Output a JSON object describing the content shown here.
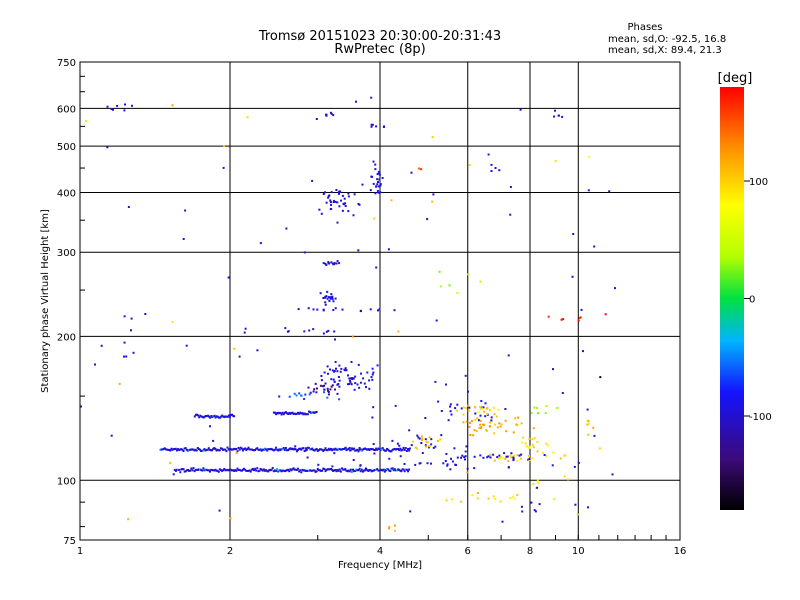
{
  "chart_data": {
    "type": "scatter",
    "title": "Tromsø 20151023 20:30:00-20:31:43",
    "subtitle": "RwPretec (8p)",
    "xlabel": "Frequency [MHz]",
    "ylabel": "Stationary phase Virtual Height [km]",
    "x_scale": "log",
    "y_scale": "log",
    "xlim": [
      1,
      16
    ],
    "ylim": [
      75,
      750
    ],
    "x_ticks": [
      1,
      2,
      4,
      6,
      8,
      10,
      16
    ],
    "x_tick_labels": [
      "1",
      "2",
      "4",
      "6",
      "8",
      "10",
      "16"
    ],
    "y_ticks": [
      75,
      100,
      200,
      300,
      400,
      500,
      600,
      750
    ],
    "y_tick_labels": [
      "75",
      "100",
      "200",
      "300",
      "400",
      "500",
      "600",
      "750"
    ],
    "grid": true,
    "phases": {
      "heading": "Phases",
      "line_o": "mean, sd,O: -92.5, 16.8",
      "line_x": "mean, sd,X: 89.4, 21.3"
    },
    "colorbar": {
      "label": "[deg]",
      "range": [
        -180,
        180
      ],
      "ticks": [
        100,
        0,
        -100
      ],
      "tick_labels": [
        "100",
        "0",
        "-100"
      ]
    },
    "traces": [
      {
        "name": "",
        "x_start": 1.55,
        "x_end": 4.6,
        "y": 105,
        "phase": -95
      },
      {
        "name": "",
        "x_start": 1.45,
        "x_end": 4.6,
        "y": 116,
        "phase": -95
      },
      {
        "name": "",
        "x_start": 1.7,
        "x_end": 2.05,
        "y": 136,
        "phase": -95
      },
      {
        "name": "",
        "x_start": 2.45,
        "x_end": 3.0,
        "y": 138,
        "phase": -95
      }
    ],
    "clusters": [
      {
        "x": 4.5,
        "y": 118,
        "phase": -95,
        "dx": 0.8,
        "dy": 0.12,
        "n": 35
      },
      {
        "x": 5.2,
        "y": 108,
        "phase": -95,
        "dx": 1.2,
        "dy": 0.05,
        "n": 30
      },
      {
        "x": 5.8,
        "y": 140,
        "phase": -95,
        "dx": 0.6,
        "dy": 0.1,
        "n": 25
      },
      {
        "x": 6.7,
        "y": 130,
        "phase": 115,
        "dx": 0.3,
        "dy": 0.08,
        "n": 40
      },
      {
        "x": 6.2,
        "y": 140,
        "phase": 100,
        "dx": 0.25,
        "dy": 0.06,
        "n": 20
      },
      {
        "x": 5.0,
        "y": 120,
        "phase": 110,
        "dx": 0.15,
        "dy": 0.08,
        "n": 15
      },
      {
        "x": 7.8,
        "y": 112,
        "phase": 100,
        "dx": 0.35,
        "dy": 0.04,
        "n": 25
      },
      {
        "x": 7.0,
        "y": 112,
        "phase": -95,
        "dx": 0.35,
        "dy": 0.03,
        "n": 25
      },
      {
        "x": 8.2,
        "y": 120,
        "phase": 95,
        "dx": 0.12,
        "dy": 0.07,
        "n": 15
      },
      {
        "x": 3.4,
        "y": 165,
        "phase": -95,
        "dx": 0.25,
        "dy": 0.12,
        "n": 60
      },
      {
        "x": 3.1,
        "y": 155,
        "phase": -120,
        "dx": 0.12,
        "dy": 0.06,
        "n": 20
      },
      {
        "x": 2.9,
        "y": 150,
        "phase": -60,
        "dx": 0.25,
        "dy": 0.04,
        "n": 12
      },
      {
        "x": 3.15,
        "y": 240,
        "phase": -95,
        "dx": 0.06,
        "dy": 0.05,
        "n": 20
      },
      {
        "x": 3.2,
        "y": 285,
        "phase": -95,
        "dx": 0.08,
        "dy": 0.02,
        "n": 15
      },
      {
        "x": 3.3,
        "y": 380,
        "phase": -95,
        "dx": 0.15,
        "dy": 0.15,
        "n": 40
      },
      {
        "x": 3.95,
        "y": 430,
        "phase": -95,
        "dx": 0.05,
        "dy": 0.12,
        "n": 25
      },
      {
        "x": 3.9,
        "y": 550,
        "phase": -95,
        "dx": 0.08,
        "dy": 0.02,
        "n": 6
      },
      {
        "x": 3.5,
        "y": 228,
        "phase": -95,
        "dx": 0.5,
        "dy": 0.02,
        "n": 15
      },
      {
        "x": 2.8,
        "y": 205,
        "phase": -95,
        "dx": 0.3,
        "dy": 0.03,
        "n": 10
      },
      {
        "x": 3.1,
        "y": 580,
        "phase": -95,
        "dx": 0.1,
        "dy": 0.04,
        "n": 8
      },
      {
        "x": 7.2,
        "y": 92,
        "phase": 100,
        "dx": 0.5,
        "dy": 0.05,
        "n": 15
      },
      {
        "x": 8.5,
        "y": 88,
        "phase": -95,
        "dx": 0.4,
        "dy": 0.04,
        "n": 8
      },
      {
        "x": 1.2,
        "y": 600,
        "phase": -95,
        "dx": 0.1,
        "dy": 0.05,
        "n": 6
      },
      {
        "x": 10.8,
        "y": 220,
        "phase": 170,
        "dx": 0.4,
        "dy": 0.05,
        "n": 8
      },
      {
        "x": 9.2,
        "y": 580,
        "phase": -95,
        "dx": 0.05,
        "dy": 0.03,
        "n": 4
      },
      {
        "x": 1.3,
        "y": 200,
        "phase": -95,
        "dx": 0.2,
        "dy": 0.3,
        "n": 8
      },
      {
        "x": 8.5,
        "y": 140,
        "phase": 30,
        "dx": 0.2,
        "dy": 0.06,
        "n": 8
      },
      {
        "x": 6.8,
        "y": 450,
        "phase": -95,
        "dx": 0.05,
        "dy": 0.05,
        "n": 4
      },
      {
        "x": 11.0,
        "y": 165,
        "phase": -178,
        "dx": 0.02,
        "dy": 0.01,
        "n": 1
      },
      {
        "x": 10.4,
        "y": 130,
        "phase": 110,
        "dx": 0.05,
        "dy": 0.1,
        "n": 6
      },
      {
        "x": 9.0,
        "y": 100,
        "phase": 95,
        "dx": 0.3,
        "dy": 0.05,
        "n": 6
      },
      {
        "x": 4.8,
        "y": 450,
        "phase": 150,
        "dx": 0.05,
        "dy": 0.02,
        "n": 2
      },
      {
        "x": 4.4,
        "y": 80,
        "phase": 120,
        "dx": 0.2,
        "dy": 0.04,
        "n": 4
      },
      {
        "x": 5.5,
        "y": 260,
        "phase": 30,
        "dx": 0.3,
        "dy": 0.1,
        "n": 6
      }
    ]
  }
}
